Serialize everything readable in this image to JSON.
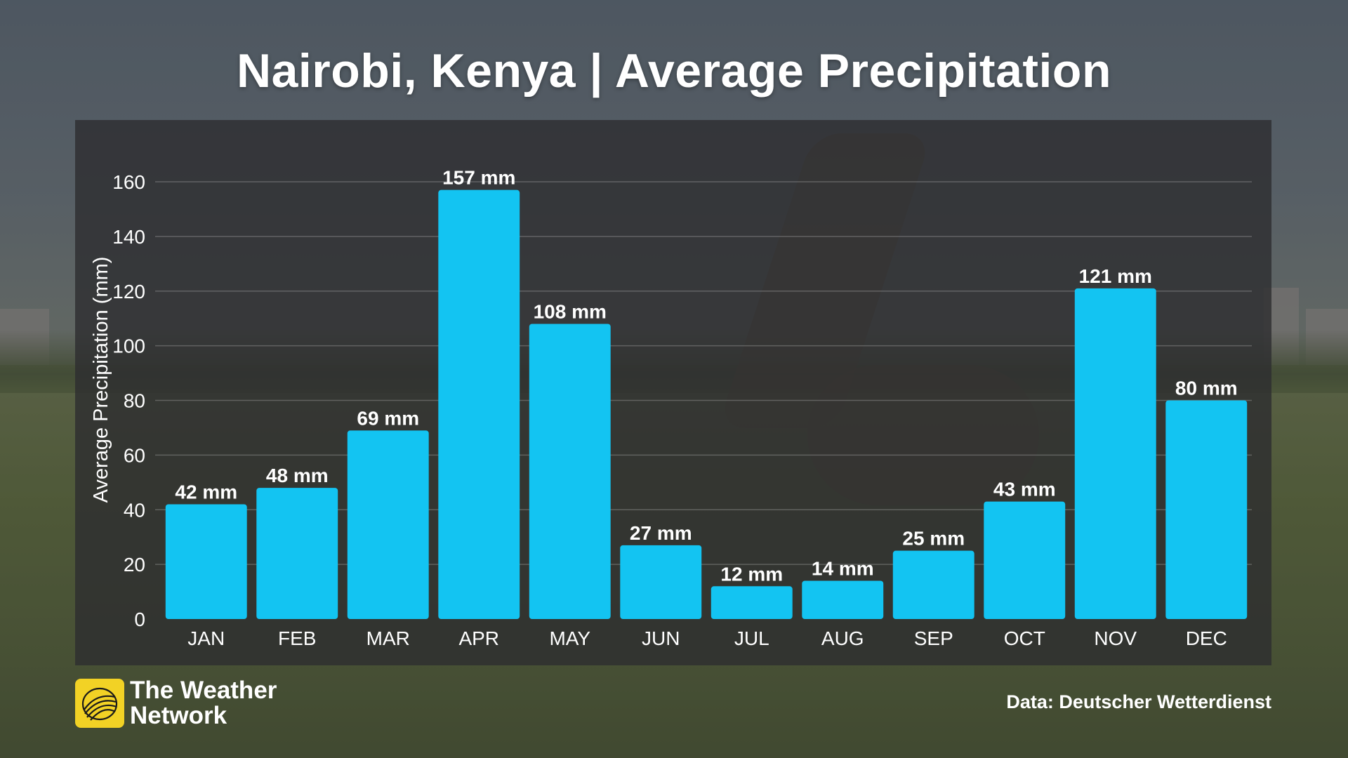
{
  "title": "Nairobi, Kenya | Average Precipitation",
  "brand": {
    "line1": "The Weather",
    "line2": "Network",
    "color": "#f2d225"
  },
  "source": "Data: Deutscher Wetterdienst",
  "colors": {
    "bar": "#13c4f2",
    "panel": "#2d2d30"
  },
  "chart_data": {
    "type": "bar",
    "title": "Nairobi, Kenya | Average Precipitation",
    "xlabel": "",
    "ylabel": "Average Precipitation (mm)",
    "categories": [
      "JAN",
      "FEB",
      "MAR",
      "APR",
      "MAY",
      "JUN",
      "JUL",
      "AUG",
      "SEP",
      "OCT",
      "NOV",
      "DEC"
    ],
    "values": [
      42,
      48,
      69,
      157,
      108,
      27,
      12,
      14,
      25,
      43,
      121,
      80
    ],
    "value_labels": [
      "42 mm",
      "48 mm",
      "69 mm",
      "157 mm",
      "108 mm",
      "27 mm",
      "12 mm",
      "14 mm",
      "25 mm",
      "43 mm",
      "121 mm",
      "80 mm"
    ],
    "yticks": [
      0,
      20,
      40,
      60,
      80,
      100,
      120,
      140,
      160
    ],
    "ylim": [
      0,
      160
    ],
    "grid": true,
    "legend": "none"
  }
}
